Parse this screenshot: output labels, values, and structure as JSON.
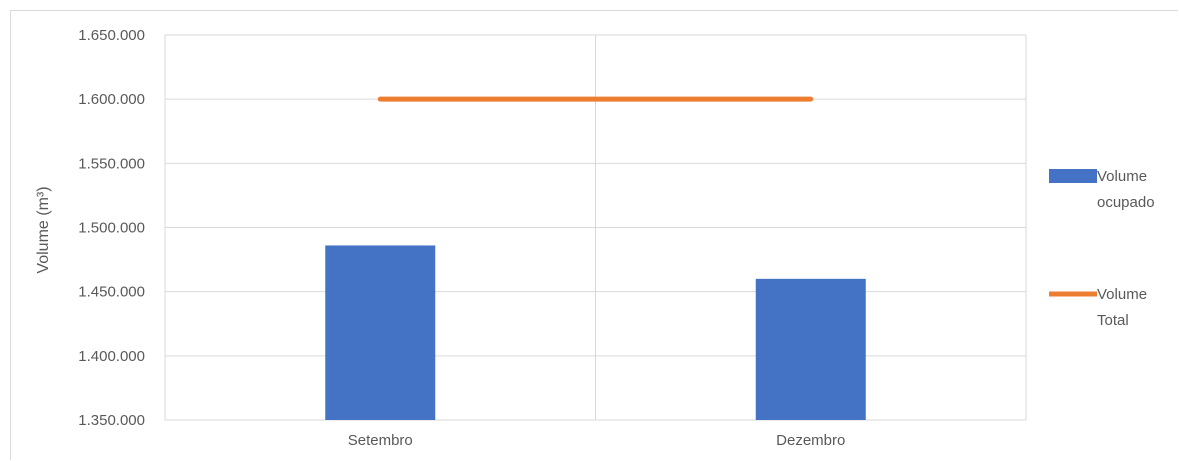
{
  "chart_data": {
    "type": "bar",
    "title": "",
    "xlabel": "",
    "ylabel": "Volume (m³)",
    "categories": [
      "Setembro",
      "Dezembro"
    ],
    "ylim": [
      1350000,
      1650000
    ],
    "yticks": [
      1350000,
      1400000,
      1450000,
      1500000,
      1550000,
      1600000,
      1650000
    ],
    "ytick_labels": [
      "1.350.000",
      "1.400.000",
      "1.450.000",
      "1.500.000",
      "1.550.000",
      "1.600.000",
      "1.650.000"
    ],
    "grid": true,
    "legend_position": "right",
    "series": [
      {
        "name": "Volume ocupado",
        "legend_lines": [
          "Volume",
          "ocupado"
        ],
        "type": "bar",
        "color": "#4472c4",
        "values": [
          1486000,
          1460000
        ]
      },
      {
        "name": "Volume Total",
        "legend_lines": [
          "Volume",
          "Total"
        ],
        "type": "line",
        "color": "#ed7d31",
        "values": [
          1600000,
          1600000
        ]
      }
    ]
  }
}
